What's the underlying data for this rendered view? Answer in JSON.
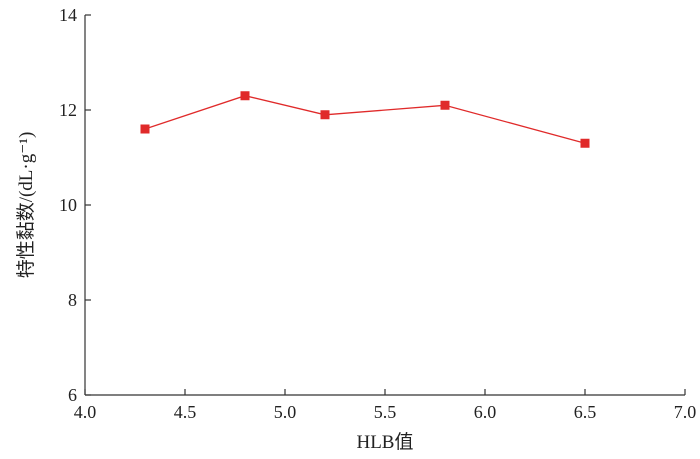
{
  "chart_data": {
    "type": "line",
    "title": "",
    "xlabel": "HLB值",
    "ylabel": "特性黏数/(dL·g⁻¹)",
    "xlim": [
      4.0,
      7.0
    ],
    "ylim": [
      6,
      14
    ],
    "x_ticks": [
      "4.0",
      "4.5",
      "5.0",
      "5.5",
      "6.0",
      "6.5",
      "7.0"
    ],
    "y_ticks": [
      "6",
      "8",
      "10",
      "12",
      "14"
    ],
    "grid": false,
    "series": [
      {
        "color": "#e02a2a",
        "marker": "square",
        "x": [
          4.3,
          4.8,
          5.2,
          5.8,
          6.5
        ],
        "y": [
          11.6,
          12.3,
          11.9,
          12.1,
          11.3
        ]
      }
    ]
  }
}
